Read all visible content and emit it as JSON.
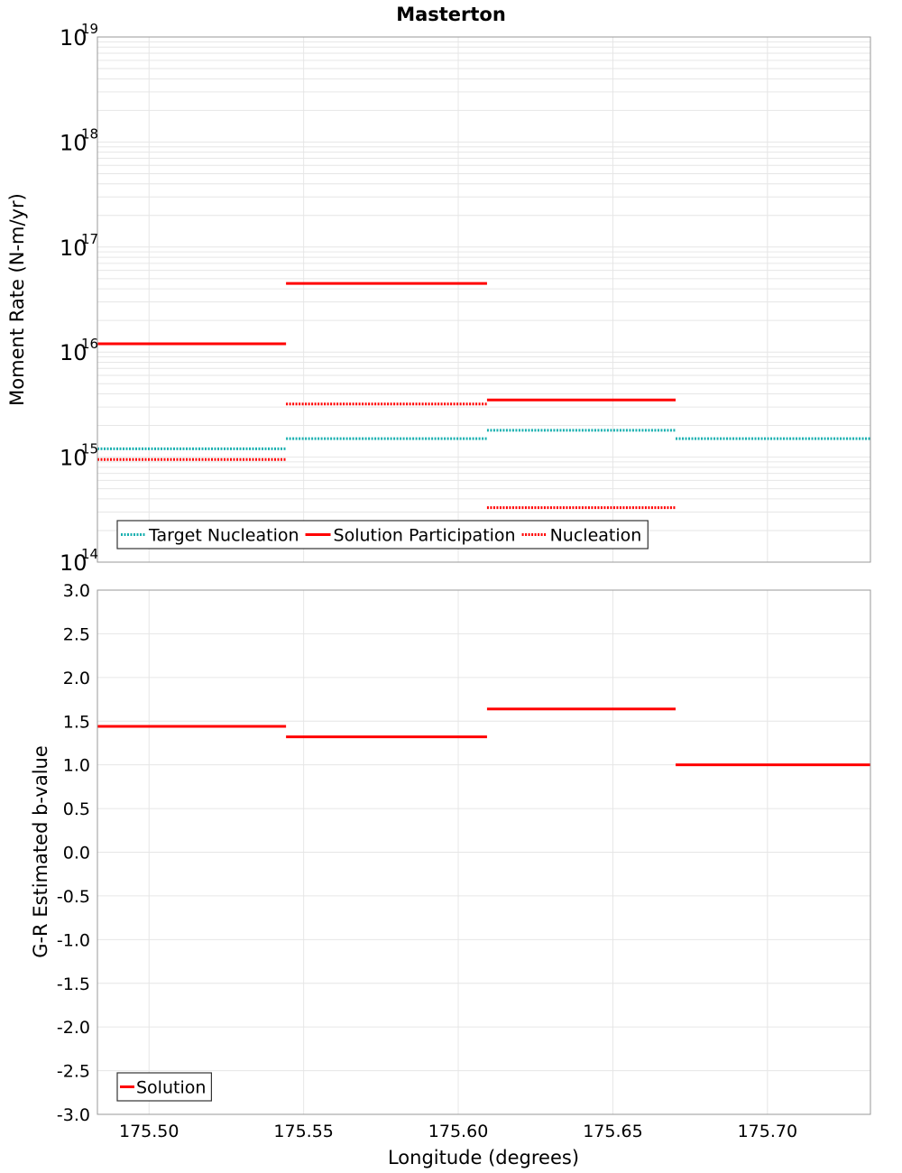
{
  "chart_data": [
    {
      "type": "line",
      "title": "Masterton",
      "xlabel": "",
      "ylabel": "Moment Rate (N-m/yr)",
      "yscale": "log",
      "ylim_exponents": [
        14,
        19
      ],
      "ytick_base": "10",
      "ytick_exponents": [
        "14",
        "15",
        "16",
        "17",
        "18",
        "19"
      ],
      "xlim": [
        175.4833,
        175.7333
      ],
      "grid": true,
      "legend_position": "bottom-left",
      "series": [
        {
          "name": "Target Nucleation",
          "style": "dotted",
          "color": "#1ab0b0",
          "segments": [
            {
              "x": [
                175.4833,
                175.5443
              ],
              "y": 1200000000000000.0
            },
            {
              "x": [
                175.5443,
                175.6093
              ],
              "y": 1500000000000000.0
            },
            {
              "x": [
                175.6093,
                175.6703
              ],
              "y": 1800000000000000.0
            },
            {
              "x": [
                175.6703,
                175.7333
              ],
              "y": 1500000000000000.0
            }
          ]
        },
        {
          "name": "Solution Participation",
          "style": "solid",
          "color": "#ff0000",
          "segments": [
            {
              "x": [
                175.4833,
                175.5443
              ],
              "y": 1.2e+16
            },
            {
              "x": [
                175.5443,
                175.6093
              ],
              "y": 4.5e+16
            },
            {
              "x": [
                175.6093,
                175.6703
              ],
              "y": 3500000000000000.0
            }
          ]
        },
        {
          "name": "Nucleation",
          "style": "dotted",
          "color": "#ff0000",
          "segments": [
            {
              "x": [
                175.4833,
                175.5443
              ],
              "y": 950000000000000.0
            },
            {
              "x": [
                175.5443,
                175.6093
              ],
              "y": 3200000000000000.0
            },
            {
              "x": [
                175.6093,
                175.6703
              ],
              "y": 330000000000000.0
            }
          ]
        }
      ]
    },
    {
      "type": "line",
      "title": "",
      "xlabel": "Longitude (degrees)",
      "ylabel": "G-R Estimated b-value",
      "ylim": [
        -3.0,
        3.0
      ],
      "yticks": [
        "-3.0",
        "-2.5",
        "-2.0",
        "-1.5",
        "-1.0",
        "-0.5",
        "0.0",
        "0.5",
        "1.0",
        "1.5",
        "2.0",
        "2.5",
        "3.0"
      ],
      "xlim": [
        175.4833,
        175.7333
      ],
      "xticks": [
        "175.50",
        "175.55",
        "175.60",
        "175.65",
        "175.70"
      ],
      "grid": true,
      "legend_position": "bottom-left",
      "series": [
        {
          "name": "Solution",
          "style": "solid",
          "color": "#ff0000",
          "segments": [
            {
              "x": [
                175.4833,
                175.5443
              ],
              "y": 1.44
            },
            {
              "x": [
                175.5443,
                175.6093
              ],
              "y": 1.32
            },
            {
              "x": [
                175.6093,
                175.6703
              ],
              "y": 1.64
            },
            {
              "x": [
                175.6703,
                175.7333
              ],
              "y": 1.0
            }
          ]
        }
      ]
    }
  ]
}
